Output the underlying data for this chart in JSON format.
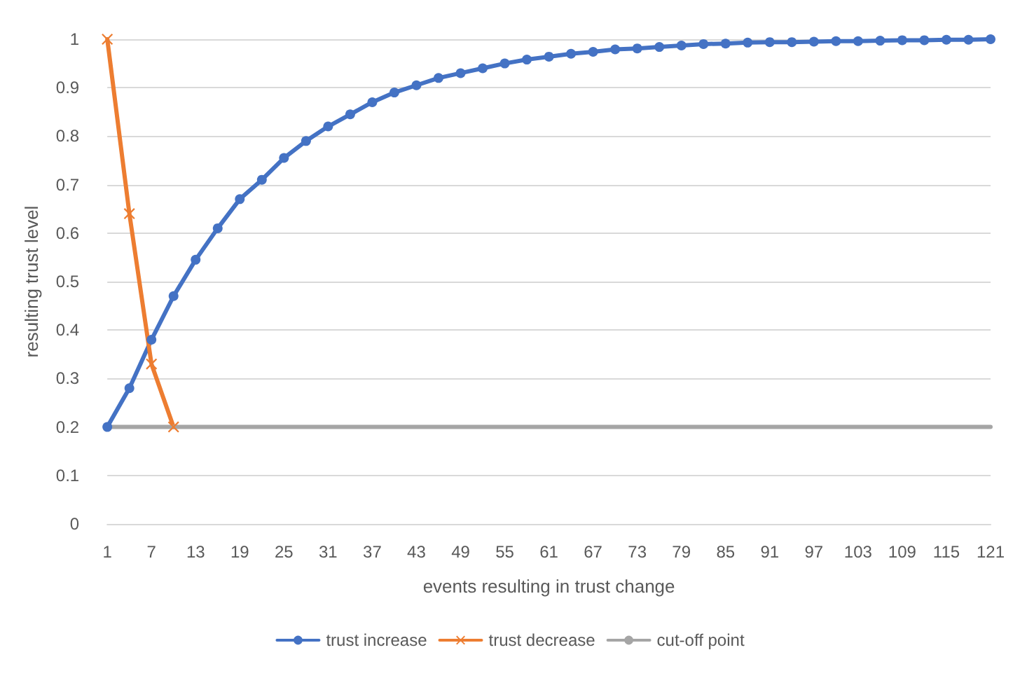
{
  "chart_data": {
    "type": "line",
    "xlabel": "events resulting in trust change",
    "ylabel": "resulting trust level",
    "categories": [
      "1",
      null,
      "7",
      null,
      "13",
      null,
      "19",
      null,
      "25",
      null,
      "31",
      null,
      "37",
      null,
      "43",
      null,
      "49",
      null,
      "55",
      null,
      "61",
      null,
      "67",
      null,
      "73",
      null,
      "79",
      null,
      "85",
      null,
      "91",
      null,
      "97",
      null,
      "103",
      null,
      "109",
      null,
      "115",
      null,
      "121"
    ],
    "series": [
      {
        "name": "trust increase",
        "color": "#4472c4",
        "marker": "circle",
        "values": [
          0.2,
          0.28,
          0.38,
          0.47,
          0.545,
          0.61,
          0.67,
          0.71,
          0.755,
          0.79,
          0.82,
          0.845,
          0.87,
          0.89,
          0.905,
          0.92,
          0.93,
          0.94,
          0.95,
          0.958,
          0.964,
          0.97,
          0.974,
          0.979,
          0.981,
          0.984,
          0.987,
          0.99,
          0.991,
          0.993,
          0.994,
          0.994,
          0.995,
          0.996,
          0.996,
          0.997,
          0.998,
          0.998,
          0.999,
          0.999,
          1
        ]
      },
      {
        "name": "trust decrease",
        "color": "#ed7d31",
        "marker": "cross",
        "values": [
          1,
          0.64,
          0.33,
          0.2,
          null,
          null,
          null,
          null,
          null,
          null,
          null,
          null,
          null,
          null,
          null,
          null,
          null,
          null,
          null,
          null,
          null,
          null,
          null,
          null,
          null,
          null,
          null,
          null,
          null,
          null,
          null,
          null,
          null,
          null,
          null,
          null,
          null,
          null,
          null,
          null,
          null
        ]
      },
      {
        "name": "cut-off point",
        "color": "#a5a5a5",
        "marker": "none",
        "values": [
          0.2,
          0.2,
          0.2,
          0.2,
          0.2,
          0.2,
          0.2,
          0.2,
          0.2,
          0.2,
          0.2,
          0.2,
          0.2,
          0.2,
          0.2,
          0.2,
          0.2,
          0.2,
          0.2,
          0.2,
          0.2,
          0.2,
          0.2,
          0.2,
          0.2,
          0.2,
          0.2,
          0.2,
          0.2,
          0.2,
          0.2,
          0.2,
          0.2,
          0.2,
          0.2,
          0.2,
          0.2,
          0.2,
          0.2,
          0.2,
          0.2
        ]
      }
    ],
    "ylim": [
      0,
      1
    ],
    "yticks": [
      0,
      0.1,
      0.2,
      0.3,
      0.4,
      0.5,
      0.6,
      0.7,
      0.8,
      0.9,
      1
    ],
    "grid": "y",
    "legend": "bottom",
    "line_style": "solid"
  }
}
